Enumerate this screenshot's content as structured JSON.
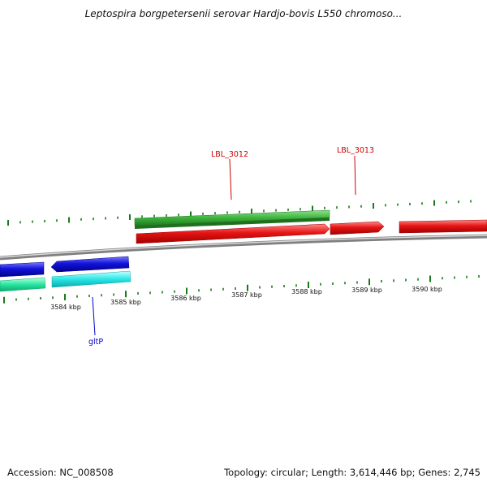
{
  "title": "Leptospira borgpetersenii serovar Hardjo-bovis L550 chromoso...",
  "footer": {
    "accession": "Accession: NC_008508",
    "summary": "Topology: circular; Length: 3,614,446 bp; Genes: 2,745"
  },
  "colors": {
    "forward_cds": "#3cb43c",
    "forward_cds_dark": "#228b22",
    "reverse_cds": "#e61414",
    "reverse_blue": "#1414dc",
    "cyan": "#28e6e6",
    "teal": "#28e6a0",
    "tick": "#1a7a1a",
    "backbone": "#888888",
    "label_red": "#cc0000",
    "label_blue": "#0000cc"
  },
  "kbp_labels": [
    "3584 kbp",
    "3585 kbp",
    "3586 kbp",
    "3587 kbp",
    "3588 kbp",
    "3589 kbp",
    "3590 kbp"
  ],
  "gene_labels": [
    "LBL_3012",
    "LBL_3013",
    "gltP"
  ]
}
